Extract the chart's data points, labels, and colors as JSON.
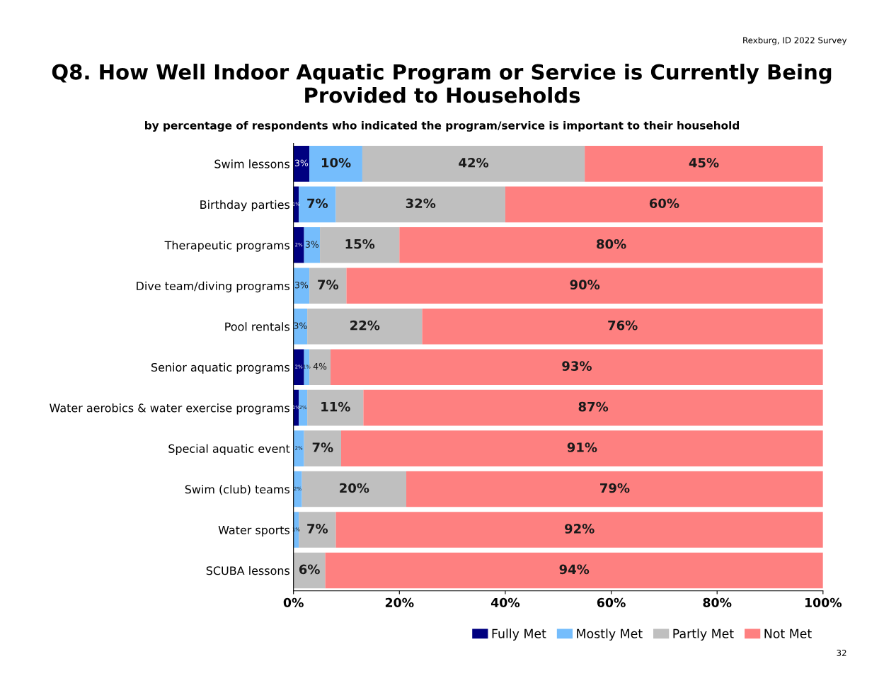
{
  "chart_data": {
    "type": "bar",
    "orientation": "horizontal",
    "stacked": true,
    "title": "Q8. How Well Indoor Aquatic Program or Service is Currently Being Provided to Households",
    "subtitle": "by percentage of respondents who indicated the program/service is important to their household",
    "categories": [
      "Swim lessons",
      "Birthday parties",
      "Therapeutic programs",
      "Dive team/diving programs",
      "Pool rentals",
      "Senior aquatic programs",
      "Water aerobics & water exercise programs",
      "Special aquatic event",
      "Swim (club) teams",
      "Water sports",
      "SCUBA lessons"
    ],
    "series": [
      {
        "name": "Fully Met",
        "color": "#000080",
        "values": [
          3,
          1,
          2,
          0,
          0,
          2,
          1,
          0,
          0,
          0,
          0
        ],
        "value_labels": [
          "3%",
          "1%",
          "2%",
          null,
          null,
          "2%",
          "1%",
          null,
          null,
          null,
          null
        ]
      },
      {
        "name": "Mostly Met",
        "color": "#75bdfc",
        "values": [
          10,
          7,
          3,
          3,
          2.6,
          1,
          1.6,
          2,
          1.6,
          1,
          0
        ],
        "value_labels": [
          "10%",
          "7%",
          "3%",
          "3%",
          "3%",
          "1%",
          "2%",
          "2%",
          "2%",
          "1%",
          null
        ]
      },
      {
        "name": "Partly Met",
        "color": "#bfbfbf",
        "values": [
          42,
          32,
          15,
          7,
          21.7,
          4,
          10.6,
          7,
          19.7,
          7,
          6
        ],
        "value_labels": [
          "42%",
          "32%",
          "15%",
          "7%",
          "22%",
          "4%",
          "11%",
          "7%",
          "20%",
          "7%",
          "6%"
        ]
      },
      {
        "name": "Not Met",
        "color": "#fe8080",
        "values": [
          45,
          60,
          80,
          90,
          75.7,
          93,
          86.8,
          91,
          78.7,
          92,
          94
        ],
        "value_labels": [
          "45%",
          "60%",
          "80%",
          "90%",
          "76%",
          "93%",
          "87%",
          "91%",
          "79%",
          "92%",
          "94%"
        ]
      }
    ],
    "xlim": [
      0,
      100
    ],
    "xticks": [
      {
        "value": 0,
        "label": "0%"
      },
      {
        "value": 20,
        "label": "20%"
      },
      {
        "value": 40,
        "label": "40%"
      },
      {
        "value": 60,
        "label": "60%"
      },
      {
        "value": 80,
        "label": "80%"
      },
      {
        "value": 100,
        "label": "100%"
      }
    ],
    "legend": "bottom right",
    "annotations": [
      "Rexburg, ID 2022 Survey",
      "32"
    ]
  }
}
